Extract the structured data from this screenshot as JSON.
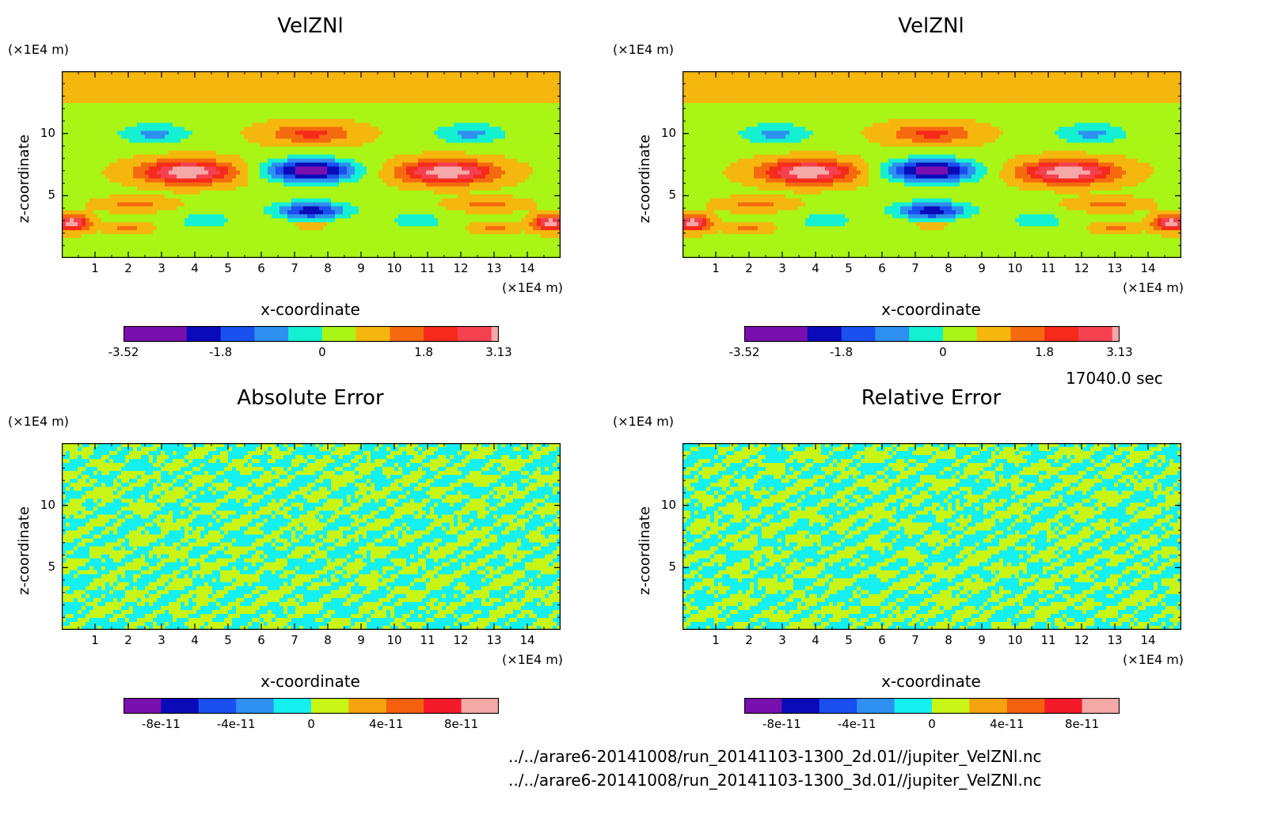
{
  "palette_main": [
    "#7a0fb0",
    "#0a0ab8",
    "#1a4ff0",
    "#2e90f0",
    "#14f0d2",
    "#a8f516",
    "#f5b70e",
    "#f56a0f",
    "#f52a1a",
    "#f54050",
    "#f5a8a8"
  ],
  "palette_err": [
    "#7a0fb0",
    "#0a0ab8",
    "#1a4ff0",
    "#2e90f0",
    "#14f0f0",
    "#c8f516",
    "#f5a30e",
    "#f5600f",
    "#f51a2a",
    "#f5a8a8"
  ],
  "time_stamp": "17040.0 sec",
  "files": [
    "../../arare6-20141008/run_20141103-1300_2d.01//jupiter_VelZNl.nc",
    "../../arare6-20141008/run_20141103-1300_3d.01//jupiter_VelZNl.nc"
  ],
  "chart_data": [
    {
      "type": "heatmap",
      "title": "VelZNl",
      "xlabel": "x-coordinate",
      "ylabel": "z-coordinate",
      "x_unit": "(×1E4 m)",
      "y_unit": "(×1E4 m)",
      "xlim": [
        0,
        15
      ],
      "ylim": [
        0,
        15
      ],
      "x_ticks": [
        "1",
        "2",
        "3",
        "4",
        "5",
        "6",
        "7",
        "8",
        "9",
        "10",
        "11",
        "12",
        "13",
        "14"
      ],
      "y_ticks": [
        "5",
        "10"
      ],
      "colorbar_labels": [
        "-3.52",
        "-1.8",
        "0",
        "1.8",
        "3.13"
      ],
      "field_range": [
        -3.52,
        3.13
      ],
      "field": "wave"
    },
    {
      "type": "heatmap",
      "title": "VelZNl",
      "xlabel": "x-coordinate",
      "ylabel": "z-coordinate",
      "x_unit": "(×1E4 m)",
      "y_unit": "(×1E4 m)",
      "xlim": [
        0,
        15
      ],
      "ylim": [
        0,
        15
      ],
      "x_ticks": [
        "1",
        "2",
        "3",
        "4",
        "5",
        "6",
        "7",
        "8",
        "9",
        "10",
        "11",
        "12",
        "13",
        "14"
      ],
      "y_ticks": [
        "5",
        "10"
      ],
      "colorbar_labels": [
        "-3.52",
        "-1.8",
        "0",
        "1.8",
        "3.13"
      ],
      "field_range": [
        -3.52,
        3.13
      ],
      "field": "wave"
    },
    {
      "type": "heatmap",
      "title": "Absolute Error",
      "xlabel": "x-coordinate",
      "ylabel": "z-coordinate",
      "x_unit": "(×1E4 m)",
      "y_unit": "(×1E4 m)",
      "xlim": [
        0,
        15
      ],
      "ylim": [
        0,
        15
      ],
      "x_ticks": [
        "1",
        "2",
        "3",
        "4",
        "5",
        "6",
        "7",
        "8",
        "9",
        "10",
        "11",
        "12",
        "13",
        "14"
      ],
      "y_ticks": [
        "5",
        "10"
      ],
      "colorbar_labels": [
        "-8e-11",
        "-4e-11",
        "0",
        "4e-11",
        "8e-11"
      ],
      "field_range": [
        -1e-10,
        1e-10
      ],
      "field": "noise"
    },
    {
      "type": "heatmap",
      "title": "Relative Error",
      "xlabel": "x-coordinate",
      "ylabel": "z-coordinate",
      "x_unit": "(×1E4 m)",
      "y_unit": "(×1E4 m)",
      "xlim": [
        0,
        15
      ],
      "ylim": [
        0,
        15
      ],
      "x_ticks": [
        "1",
        "2",
        "3",
        "4",
        "5",
        "6",
        "7",
        "8",
        "9",
        "10",
        "11",
        "12",
        "13",
        "14"
      ],
      "y_ticks": [
        "5",
        "10"
      ],
      "colorbar_labels": [
        "-8e-11",
        "-4e-11",
        "0",
        "4e-11",
        "8e-11"
      ],
      "field_range": [
        -1e-10,
        1e-10
      ],
      "field": "noise"
    }
  ]
}
